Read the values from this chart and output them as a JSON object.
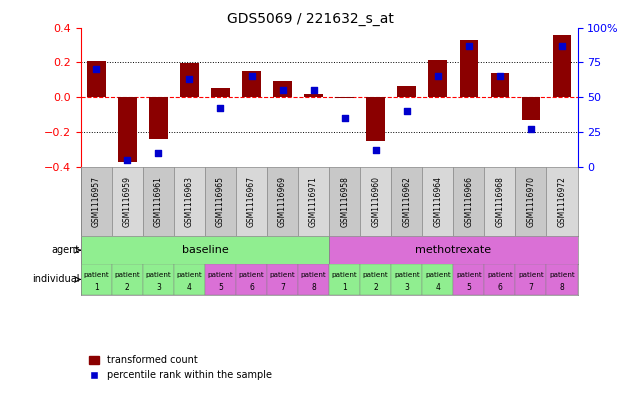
{
  "title": "GDS5069 / 221632_s_at",
  "samples": [
    "GSM1116957",
    "GSM1116959",
    "GSM1116961",
    "GSM1116963",
    "GSM1116965",
    "GSM1116967",
    "GSM1116969",
    "GSM1116971",
    "GSM1116958",
    "GSM1116960",
    "GSM1116962",
    "GSM1116964",
    "GSM1116966",
    "GSM1116968",
    "GSM1116970",
    "GSM1116972"
  ],
  "transformed_count": [
    0.21,
    -0.375,
    -0.24,
    0.195,
    0.055,
    0.15,
    0.09,
    0.02,
    -0.005,
    -0.25,
    0.065,
    0.215,
    0.33,
    0.14,
    -0.13,
    0.355
  ],
  "percentile_rank": [
    70,
    5,
    10,
    63,
    42,
    65,
    55,
    55,
    35,
    12,
    40,
    65,
    87,
    65,
    27,
    87
  ],
  "agent_groups": [
    {
      "label": "baseline",
      "start": 0,
      "end": 8,
      "color": "#90EE90"
    },
    {
      "label": "methotrexate",
      "start": 8,
      "end": 16,
      "color": "#DA70D6"
    }
  ],
  "individual_labels_top": [
    "patient",
    "patient",
    "patient",
    "patient",
    "patient",
    "patient",
    "patient",
    "patient",
    "patient",
    "patient",
    "patient",
    "patient",
    "patient",
    "patient",
    "patient",
    "patient"
  ],
  "individual_labels_bot": [
    "1",
    "2",
    "3",
    "4",
    "5",
    "6",
    "7",
    "8",
    "1",
    "2",
    "3",
    "4",
    "5",
    "6",
    "7",
    "8"
  ],
  "individual_colors": [
    "#90EE90",
    "#90EE90",
    "#90EE90",
    "#90EE90",
    "#DA70D6",
    "#DA70D6",
    "#DA70D6",
    "#DA70D6",
    "#90EE90",
    "#90EE90",
    "#90EE90",
    "#90EE90",
    "#DA70D6",
    "#DA70D6",
    "#DA70D6",
    "#DA70D6"
  ],
  "bar_color": "#8B0000",
  "dot_color": "#0000CD",
  "ylim_left": [
    -0.4,
    0.4
  ],
  "ylim_right": [
    0,
    100
  ],
  "yticks_left": [
    -0.4,
    -0.2,
    0.0,
    0.2,
    0.4
  ],
  "yticks_right": [
    0,
    25,
    50,
    75,
    100
  ],
  "hlines_dotted": [
    -0.2,
    0.2
  ],
  "hline_red_dashed": 0.0,
  "legend_items": [
    "transformed count",
    "percentile rank within the sample"
  ],
  "sample_bg_odd": "#C8C8C8",
  "sample_bg_even": "#D8D8D8"
}
